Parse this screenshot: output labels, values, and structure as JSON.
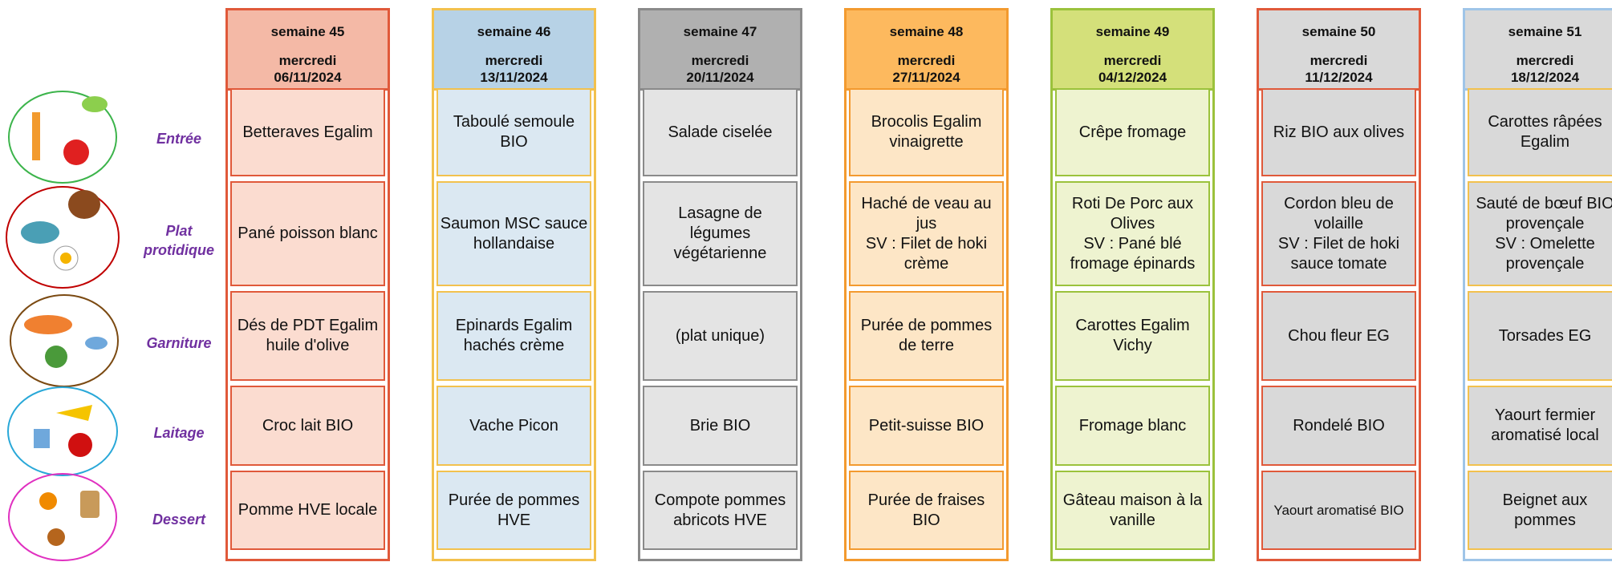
{
  "row_labels": [
    "Entrée",
    "Plat protidique",
    "Garniture",
    "Laitage",
    "Dessert"
  ],
  "columns": [
    {
      "week": "semaine 45",
      "day": "mercredi",
      "date": "06/11/2024",
      "dishes": [
        "Betteraves Egalim",
        "Pané poisson blanc",
        "Dés de PDT Egalim huile d'olive",
        "Croc lait BIO",
        "Pomme HVE locale"
      ]
    },
    {
      "week": "semaine 46",
      "day": "mercredi",
      "date": "13/11/2024",
      "dishes": [
        "Taboulé semoule BIO",
        "Saumon MSC sauce hollandaise",
        "Epinards Egalim hachés crème",
        "Vache Picon",
        "Purée de pommes HVE"
      ]
    },
    {
      "week": "semaine 47",
      "day": "mercredi",
      "date": "20/11/2024",
      "dishes": [
        "Salade ciselée",
        "Lasagne de légumes végétarienne",
        "(plat unique)",
        "Brie BIO",
        "Compote pommes abricots HVE"
      ]
    },
    {
      "week": "semaine 48",
      "day": "mercredi",
      "date": "27/11/2024",
      "dishes": [
        "Brocolis Egalim vinaigrette",
        "Haché de veau au jus\nSV : Filet de hoki crème",
        "Purée de pommes de terre",
        "Petit-suisse BIO",
        "Purée de fraises BIO"
      ]
    },
    {
      "week": "semaine 49",
      "day": "mercredi",
      "date": "04/12/2024",
      "dishes": [
        "Crêpe fromage",
        "Roti De Porc aux Olives\nSV : Pané blé fromage épinards",
        "Carottes Egalim Vichy",
        "Fromage blanc",
        "Gâteau maison à la vanille"
      ]
    },
    {
      "week": "semaine 50",
      "day": "mercredi",
      "date": "11/12/2024",
      "dishes": [
        "Riz BIO aux olives",
        "Cordon bleu de volaille\nSV : Filet de hoki sauce tomate",
        "Chou fleur EG",
        "Rondelé BIO",
        "Yaourt aromatisé BIO"
      ]
    },
    {
      "week": "semaine 51",
      "day": "mercredi",
      "date": "18/12/2024",
      "dishes": [
        "Carottes râpées Egalim",
        "Sauté de bœuf BIO provençale\nSV : Omelette provençale",
        "Torsades EG",
        "Yaourt fermier aromatisé local",
        "Beignet aux pommes"
      ]
    }
  ]
}
